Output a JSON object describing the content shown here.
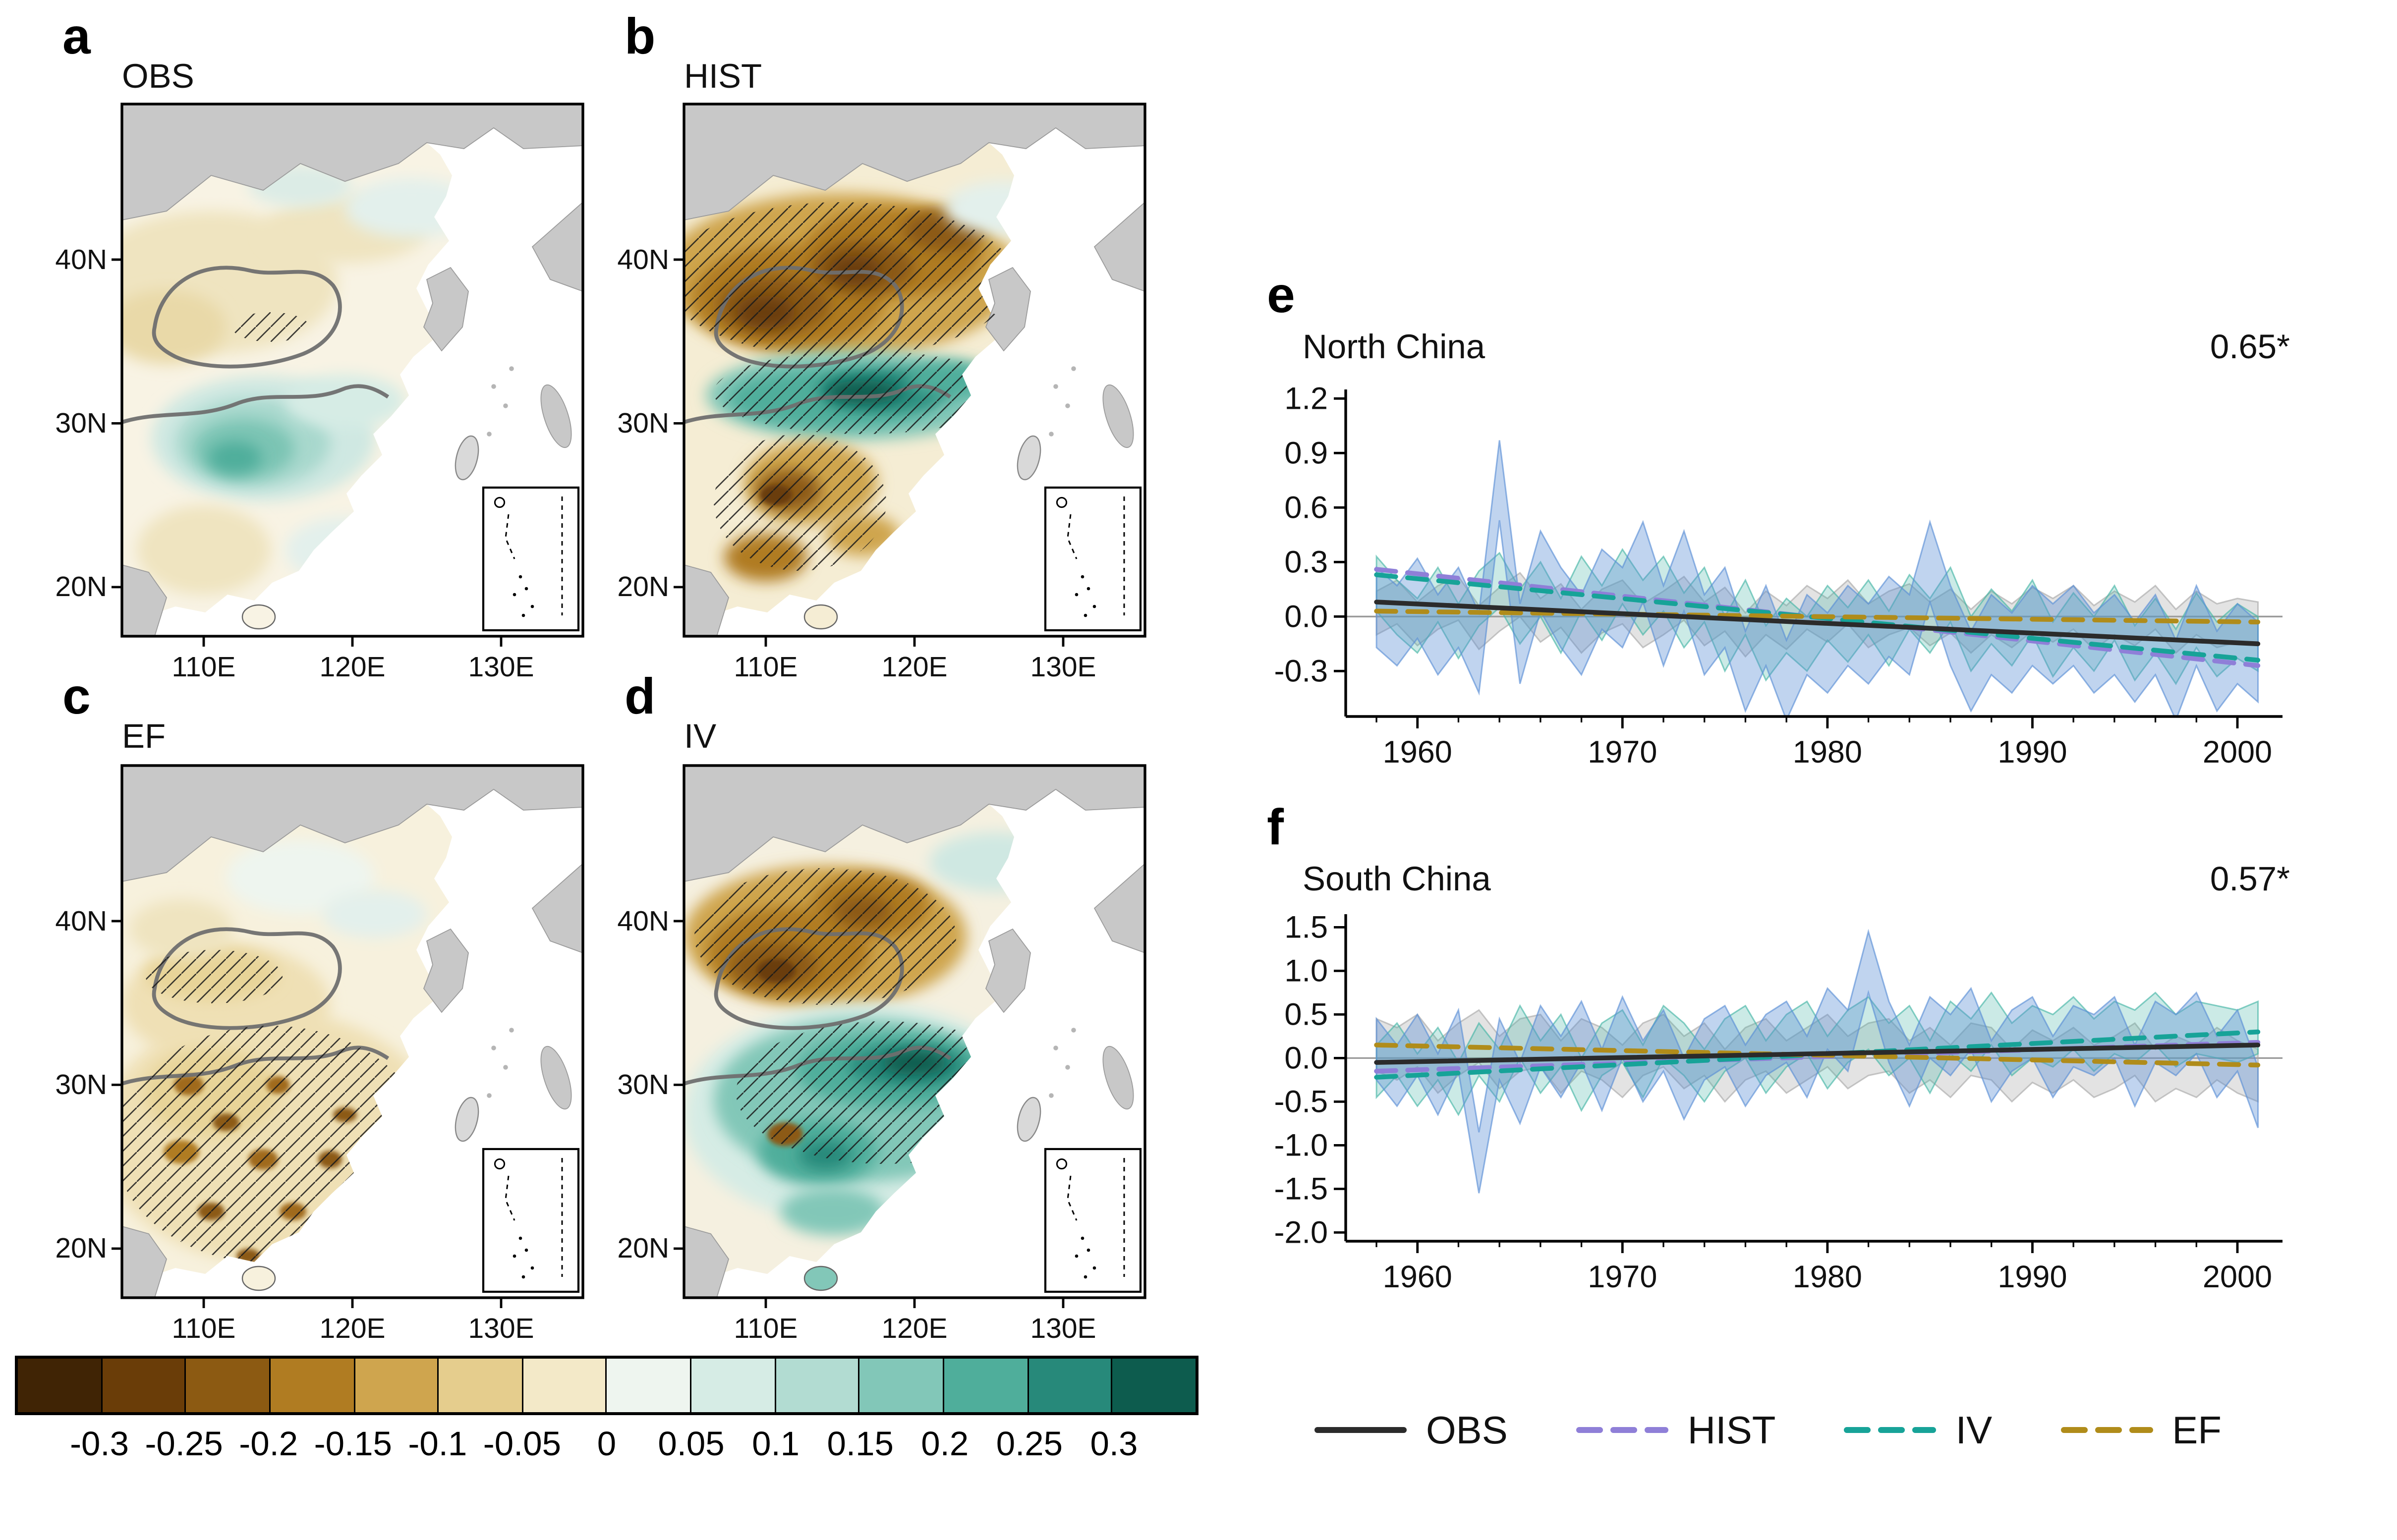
{
  "figure": {
    "background": "#ffffff"
  },
  "map_panels": [
    {
      "id": "a",
      "letter": "a",
      "title": "OBS",
      "hatched": false
    },
    {
      "id": "b",
      "letter": "b",
      "title": "HIST",
      "hatched": true
    },
    {
      "id": "c",
      "letter": "c",
      "title": "EF",
      "hatched": true
    },
    {
      "id": "d",
      "letter": "d",
      "title": "IV",
      "hatched": true
    }
  ],
  "map_axes": {
    "lat_ticks": [
      {
        "label": "40N",
        "value": 40
      },
      {
        "label": "30N",
        "value": 30
      },
      {
        "label": "20N",
        "value": 20
      }
    ],
    "lon_ticks": [
      {
        "label": "110E",
        "value": 110
      },
      {
        "label": "120E",
        "value": 120
      },
      {
        "label": "130E",
        "value": 130
      }
    ],
    "lon_range": [
      104.5,
      135.5
    ],
    "lat_range": [
      17,
      49.5
    ]
  },
  "colorbar": {
    "tick_labels": [
      "-0.3",
      "-0.25",
      "-0.2",
      "-0.15",
      "-0.1",
      "-0.05",
      "0",
      "0.05",
      "0.1",
      "0.15",
      "0.2",
      "0.25",
      "0.3"
    ],
    "colors": [
      "#402405",
      "#6a3d08",
      "#8c5a12",
      "#b07c22",
      "#cfa54e",
      "#e5cd8d",
      "#f3e9c8",
      "#eef5ef",
      "#d6ece5",
      "#b2dcd2",
      "#82c7b8",
      "#4fae9b",
      "#27897a",
      "#0d5c4e"
    ]
  },
  "ts_panels": [
    {
      "id": "e",
      "letter": "e",
      "title": "North China",
      "correlation": "0.65*"
    },
    {
      "id": "f",
      "letter": "f",
      "title": "South China",
      "correlation": "0.57*"
    }
  ],
  "legend": {
    "items": [
      {
        "label": "OBS",
        "color": "#2b2b2b",
        "style": "solid"
      },
      {
        "label": "HIST",
        "color": "#8f7fd8",
        "style": "dashed"
      },
      {
        "label": "IV",
        "color": "#17a398",
        "style": "dashed"
      },
      {
        "label": "EF",
        "color": "#b08c1a",
        "style": "dashed"
      }
    ]
  },
  "chart_data": [
    {
      "type": "heatmap",
      "subtype": "filled_contour_map",
      "panel": "a",
      "title": "OBS",
      "lat_ticks": [
        "40N",
        "30N",
        "20N"
      ],
      "lon_ticks": [
        "110E",
        "120E",
        "130E"
      ],
      "contour_levels": [
        -0.3,
        -0.25,
        -0.2,
        -0.15,
        -0.1,
        -0.05,
        0,
        0.05,
        0.1,
        0.15,
        0.2,
        0.25,
        0.3
      ],
      "hatched": false
    },
    {
      "type": "heatmap",
      "subtype": "filled_contour_map",
      "panel": "b",
      "title": "HIST",
      "lat_ticks": [
        "40N",
        "30N",
        "20N"
      ],
      "lon_ticks": [
        "110E",
        "120E",
        "130E"
      ],
      "contour_levels": [
        -0.3,
        -0.25,
        -0.2,
        -0.15,
        -0.1,
        -0.05,
        0,
        0.05,
        0.1,
        0.15,
        0.2,
        0.25,
        0.3
      ],
      "hatched": true
    },
    {
      "type": "heatmap",
      "subtype": "filled_contour_map",
      "panel": "c",
      "title": "EF",
      "lat_ticks": [
        "40N",
        "30N",
        "20N"
      ],
      "lon_ticks": [
        "110E",
        "120E",
        "130E"
      ],
      "contour_levels": [
        -0.3,
        -0.25,
        -0.2,
        -0.15,
        -0.1,
        -0.05,
        0,
        0.05,
        0.1,
        0.15,
        0.2,
        0.25,
        0.3
      ],
      "hatched": true
    },
    {
      "type": "heatmap",
      "subtype": "filled_contour_map",
      "panel": "d",
      "title": "IV",
      "lat_ticks": [
        "40N",
        "30N",
        "20N"
      ],
      "lon_ticks": [
        "110E",
        "120E",
        "130E"
      ],
      "contour_levels": [
        -0.3,
        -0.25,
        -0.2,
        -0.15,
        -0.1,
        -0.05,
        0,
        0.05,
        0.1,
        0.15,
        0.2,
        0.25,
        0.3
      ],
      "hatched": true
    },
    {
      "type": "line",
      "panel": "e",
      "title": "North China",
      "annotation": "0.65*",
      "x_start": 1958,
      "x_end": 2001,
      "xlim": [
        1956.5,
        2002.2
      ],
      "x_ticks": [
        1960,
        1970,
        1980,
        1990,
        2000
      ],
      "ylim": [
        -0.55,
        1.25
      ],
      "y_ticks": [
        "1.2",
        "0.9",
        "0.6",
        "0.3",
        "0.0",
        "-0.3"
      ],
      "bands": [
        {
          "name": "EF ensemble spread",
          "color": "#a9a9a9",
          "opacity": 0.33,
          "spread": 0.12,
          "mean": [
            0.02,
            0.08,
            -0.04,
            0.05,
            0.1,
            -0.06,
            0.04,
            0.12,
            -0.02,
            0.06,
            -0.08,
            0.03,
            0.08,
            -0.05,
            0.02,
            0.1,
            -0.04,
            0.04,
            -0.1,
            0.02,
            -0.06,
            0.05,
            -0.02,
            0.08,
            -0.05,
            0.02,
            0.06,
            -0.04,
            0.03,
            -0.08,
            0.02,
            -0.05,
            0.04,
            -0.02,
            0.05,
            -0.06,
            0.02,
            -0.04,
            0.05,
            -0.08,
            0.02,
            -0.05,
            -0.02,
            -0.04
          ]
        },
        {
          "name": "IV ensemble spread",
          "color": "#45b5a6",
          "opacity": 0.28,
          "spread": 0.15,
          "mean": [
            0.18,
            0.05,
            -0.05,
            0.12,
            -0.08,
            0.1,
            0.2,
            0.0,
            0.15,
            -0.05,
            0.18,
            0.02,
            0.22,
            0.05,
            0.18,
            -0.02,
            0.12,
            -0.15,
            0.05,
            -0.2,
            -0.05,
            -0.15,
            0.02,
            -0.1,
            0.05,
            -0.12,
            0.08,
            -0.05,
            0.12,
            -0.15,
            0.0,
            -0.12,
            0.05,
            -0.18,
            -0.02,
            -0.15,
            0.02,
            -0.2,
            -0.05,
            -0.22,
            -0.02,
            -0.18,
            -0.08,
            -0.15
          ]
        },
        {
          "name": "HIST ensemble spread",
          "color": "#5a8fd6",
          "opacity": 0.38,
          "spread": 0.22,
          "mean": [
            0.05,
            -0.05,
            0.1,
            -0.1,
            0.05,
            -0.2,
            0.75,
            -0.15,
            0.25,
            0.05,
            -0.1,
            0.15,
            0.05,
            0.3,
            -0.05,
            0.25,
            -0.1,
            0.05,
            -0.3,
            -0.05,
            -0.35,
            -0.1,
            -0.2,
            -0.05,
            -0.15,
            0.0,
            -0.1,
            0.3,
            -0.05,
            -0.3,
            -0.1,
            -0.2,
            -0.05,
            -0.15,
            -0.05,
            -0.2,
            -0.1,
            -0.25,
            -0.1,
            -0.35,
            -0.05,
            -0.3,
            -0.15,
            -0.25
          ]
        }
      ],
      "trends": [
        {
          "name": "HIST",
          "color": "#8f7fd8",
          "dash": "dashed",
          "start": 0.26,
          "end": -0.27
        },
        {
          "name": "IV",
          "color": "#17a398",
          "dash": "dashed",
          "start": 0.23,
          "end": -0.24
        },
        {
          "name": "EF",
          "color": "#b08c1a",
          "dash": "dashed",
          "start": 0.03,
          "end": -0.03
        },
        {
          "name": "OBS",
          "color": "#2b2b2b",
          "dash": "solid",
          "start": 0.08,
          "end": -0.15
        }
      ]
    },
    {
      "type": "line",
      "panel": "f",
      "title": "South China",
      "annotation": "0.57*",
      "x_start": 1958,
      "x_end": 2001,
      "xlim": [
        1956.5,
        2002.2
      ],
      "x_ticks": [
        1960,
        1970,
        1980,
        1990,
        2000
      ],
      "ylim": [
        -2.1,
        1.65
      ],
      "y_ticks": [
        "1.5",
        "1.0",
        "0.5",
        "0.0",
        "-0.5",
        "-1.0",
        "-1.5",
        "-2.0"
      ],
      "bands": [
        {
          "name": "EF ensemble spread",
          "color": "#a9a9a9",
          "opacity": 0.33,
          "spread": 0.3,
          "mean": [
            0.15,
            0.05,
            0.2,
            -0.1,
            0.1,
            0.25,
            -0.05,
            0.15,
            0.2,
            -0.1,
            0.15,
            0.05,
            -0.15,
            0.1,
            0.2,
            -0.05,
            0.1,
            -0.2,
            0.05,
            0.15,
            -0.1,
            0.05,
            0.2,
            -0.05,
            0.1,
            0.15,
            -0.1,
            0.05,
            -0.15,
            0.1,
            0.05,
            -0.2,
            0.02,
            -0.1,
            0.05,
            -0.15,
            -0.05,
            0.1,
            -0.2,
            -0.05,
            -0.15,
            0.05,
            -0.1,
            -0.2
          ]
        },
        {
          "name": "IV ensemble spread",
          "color": "#45b5a6",
          "opacity": 0.28,
          "spread": 0.3,
          "mean": [
            -0.15,
            0.1,
            -0.25,
            0.05,
            -0.35,
            0.1,
            -0.2,
            0.3,
            -0.1,
            0.2,
            -0.3,
            0.1,
            0.25,
            -0.15,
            0.3,
            0.1,
            -0.2,
            0.15,
            0.3,
            -0.1,
            0.2,
            0.35,
            -0.05,
            0.25,
            0.4,
            0.1,
            0.3,
            -0.1,
            0.35,
            0.15,
            0.45,
            0.1,
            0.3,
            0.2,
            0.4,
            0.15,
            0.35,
            0.25,
            0.45,
            0.2,
            0.35,
            0.3,
            0.25,
            0.35
          ]
        },
        {
          "name": "HIST ensemble spread",
          "color": "#5a8fd6",
          "opacity": 0.38,
          "spread": 0.35,
          "mean": [
            0.1,
            -0.2,
            0.15,
            -0.3,
            0.2,
            -1.2,
            0.1,
            -0.4,
            0.25,
            -0.1,
            0.3,
            -0.25,
            0.35,
            -0.15,
            0.2,
            -0.35,
            0.1,
            0.25,
            -0.2,
            0.15,
            0.3,
            -0.1,
            0.45,
            0.2,
            1.1,
            0.3,
            -0.2,
            0.35,
            0.15,
            0.45,
            -0.15,
            0.2,
            0.35,
            -0.1,
            0.25,
            0.15,
            0.35,
            -0.2,
            0.3,
            0.15,
            0.4,
            -0.1,
            0.2,
            -0.45
          ]
        }
      ],
      "trends": [
        {
          "name": "HIST",
          "color": "#8f7fd8",
          "dash": "dashed",
          "start": -0.15,
          "end": 0.18
        },
        {
          "name": "IV",
          "color": "#17a398",
          "dash": "dashed",
          "start": -0.22,
          "end": 0.3
        },
        {
          "name": "EF",
          "color": "#b08c1a",
          "dash": "dashed",
          "start": 0.15,
          "end": -0.08
        },
        {
          "name": "OBS",
          "color": "#2b2b2b",
          "dash": "solid",
          "start": -0.05,
          "end": 0.15
        }
      ]
    }
  ]
}
